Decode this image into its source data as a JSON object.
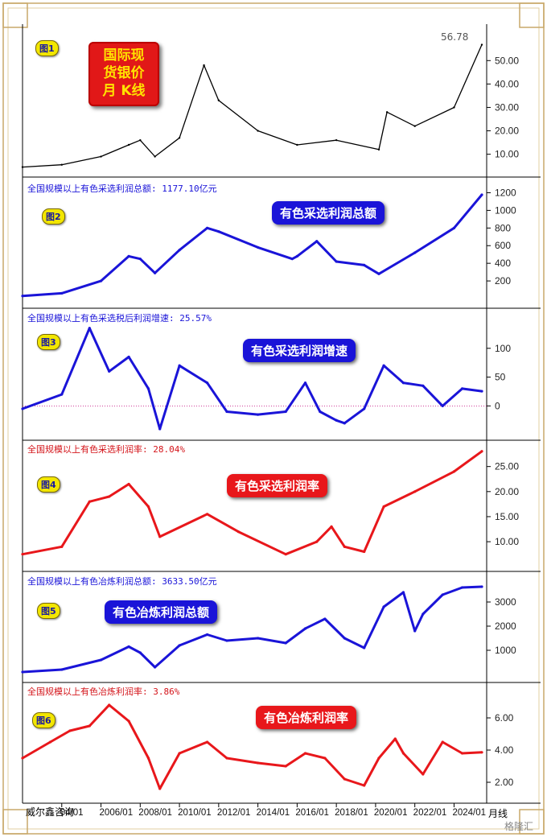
{
  "header": {
    "title_line1": "国际现",
    "title_line2": "货银价",
    "title_line3": "月 K线",
    "last_price": "56.78"
  },
  "panels": [
    {
      "tag": "图1",
      "label": "",
      "badge": "",
      "color": "#000000"
    },
    {
      "tag": "图2",
      "label": "全国规模以上有色采选利润总额: 1177.10亿元",
      "badge": "有色采选利润总额",
      "color": "#1a14d8"
    },
    {
      "tag": "图3",
      "label": "全国规模以上有色采选税后利润增速: 25.57%",
      "badge": "有色采选利润增速",
      "color": "#1a14d8"
    },
    {
      "tag": "图4",
      "label": "全国规模以上有色采选利润率: 28.04%",
      "badge": "有色采选利润率",
      "color": "#e8171b"
    },
    {
      "tag": "图5",
      "label": "全国规模以上有色冶炼利润总额: 3633.50亿元",
      "badge": "有色冶炼利润总额",
      "color": "#1a14d8"
    },
    {
      "tag": "图6",
      "label": "全国规模以上有色冶炼利润率: 3.86%",
      "badge": "有色冶炼利润率",
      "color": "#e8171b"
    }
  ],
  "footer": {
    "source": "威尔鑫咨询",
    "period": "月线",
    "watermark": "格隆汇"
  },
  "chart_data": [
    {
      "type": "line",
      "title": "国际现货银价月K线",
      "ylim": [
        3,
        58
      ],
      "yticks": [
        "10.00",
        "20.00",
        "30.00",
        "40.00",
        "50.00"
      ],
      "x": [
        "2002/01",
        "2004/01",
        "2006/01",
        "2007/06",
        "2008/01",
        "2008/10",
        "2010/01",
        "2011/04",
        "2012/01",
        "2014/01",
        "2016/01",
        "2018/01",
        "2020/03",
        "2020/08",
        "2022/01",
        "2024/01",
        "2025/06"
      ],
      "series": [
        {
          "name": "",
          "values": [
            4.5,
            5.5,
            9,
            14,
            16,
            9,
            17,
            48,
            33,
            20,
            14,
            16,
            12,
            28,
            22,
            30,
            56.78
          ]
        }
      ]
    },
    {
      "type": "line",
      "title": "全国规模以上有色采选利润总额",
      "ylim": [
        0,
        1250
      ],
      "yticks": [
        "200",
        "400",
        "600",
        "800",
        "1000",
        "1200"
      ],
      "x": [
        "2002/01",
        "2004/01",
        "2006/01",
        "2007/06",
        "2008/01",
        "2008/10",
        "2010/01",
        "2011/06",
        "2012/01",
        "2014/01",
        "2015/10",
        "2016/01",
        "2017/01",
        "2018/01",
        "2019/06",
        "2020/03",
        "2022/01",
        "2024/01",
        "2025/06"
      ],
      "series": [
        {
          "name": "有色采选利润总额",
          "values": [
            30,
            60,
            200,
            480,
            450,
            290,
            550,
            800,
            760,
            580,
            450,
            480,
            650,
            420,
            380,
            280,
            520,
            800,
            1177.1
          ]
        }
      ]
    },
    {
      "type": "line",
      "title": "全国规模以上有色采选税后利润增速",
      "ylim": [
        -40,
        150
      ],
      "yticks": [
        "0",
        "50",
        "100"
      ],
      "x": [
        "2002/01",
        "2004/01",
        "2005/06",
        "2006/06",
        "2007/06",
        "2008/06",
        "2009/01",
        "2010/01",
        "2011/06",
        "2012/06",
        "2014/01",
        "2015/06",
        "2016/06",
        "2017/03",
        "2018/01",
        "2018/06",
        "2019/06",
        "2020/06",
        "2021/06",
        "2022/06",
        "2023/06",
        "2024/06",
        "2025/06"
      ],
      "series": [
        {
          "name": "有色采选利润增速",
          "values": [
            -5,
            20,
            135,
            60,
            85,
            30,
            -40,
            70,
            40,
            -10,
            -15,
            -10,
            40,
            -10,
            -25,
            -30,
            -5,
            70,
            40,
            35,
            0,
            30,
            25.57
          ]
        }
      ]
    },
    {
      "type": "line",
      "title": "全国规模以上有色采选利润率",
      "ylim": [
        6,
        28
      ],
      "yticks": [
        "10.00",
        "15.00",
        "20.00",
        "25.00"
      ],
      "x": [
        "2002/01",
        "2004/01",
        "2005/06",
        "2006/06",
        "2007/06",
        "2008/06",
        "2009/01",
        "2011/06",
        "2013/01",
        "2015/06",
        "2017/01",
        "2017/10",
        "2018/06",
        "2019/06",
        "2020/06",
        "2022/01",
        "2024/01",
        "2025/06"
      ],
      "series": [
        {
          "name": "有色采选利润率",
          "values": [
            7.5,
            9,
            18,
            19,
            21.5,
            17,
            11,
            15.5,
            12,
            7.5,
            10,
            13,
            9,
            8,
            17,
            20,
            24,
            28.04
          ]
        }
      ]
    },
    {
      "type": "line",
      "title": "全国规模以上有色冶炼利润总额",
      "ylim": [
        0,
        3800
      ],
      "yticks": [
        "1000",
        "2000",
        "3000"
      ],
      "x": [
        "2002/01",
        "2004/01",
        "2006/01",
        "2007/06",
        "2008/01",
        "2008/10",
        "2010/01",
        "2011/06",
        "2012/06",
        "2014/01",
        "2015/06",
        "2016/06",
        "2017/06",
        "2018/06",
        "2019/06",
        "2020/06",
        "2021/06",
        "2022/01",
        "2022/06",
        "2023/06",
        "2024/06",
        "2025/06"
      ],
      "series": [
        {
          "name": "有色冶炼利润总额",
          "values": [
            100,
            200,
            600,
            1150,
            900,
            300,
            1200,
            1650,
            1400,
            1500,
            1300,
            1900,
            2300,
            1500,
            1100,
            2800,
            3400,
            1800,
            2500,
            3300,
            3600,
            3633.5
          ]
        }
      ]
    },
    {
      "type": "line",
      "title": "全国规模以上有色冶炼利润率",
      "ylim": [
        1.2,
        7.5
      ],
      "yticks": [
        "2.00",
        "4.00",
        "6.00"
      ],
      "x": [
        "2002/01",
        "2003/06",
        "2004/06",
        "2005/06",
        "2006/06",
        "2007/06",
        "2008/06",
        "2009/01",
        "2010/01",
        "2011/06",
        "2012/06",
        "2014/01",
        "2015/06",
        "2016/06",
        "2017/06",
        "2018/06",
        "2019/06",
        "2020/03",
        "2021/01",
        "2021/06",
        "2022/06",
        "2023/06",
        "2024/06",
        "2025/06"
      ],
      "series": [
        {
          "name": "有色冶炼利润率",
          "values": [
            3.5,
            4.5,
            5.2,
            5.5,
            6.8,
            5.8,
            3.5,
            1.6,
            3.8,
            4.5,
            3.5,
            3.2,
            3.0,
            3.8,
            3.5,
            2.2,
            1.8,
            3.5,
            4.7,
            3.8,
            2.5,
            4.5,
            3.8,
            3.86
          ]
        }
      ]
    }
  ],
  "xaxis": {
    "ticks": [
      "04/01",
      "2006/01",
      "2008/01",
      "2010/01",
      "2012/01",
      "2014/01",
      "2016/01",
      "2018/01",
      "2020/01",
      "2022/01",
      "2024/01"
    ]
  }
}
